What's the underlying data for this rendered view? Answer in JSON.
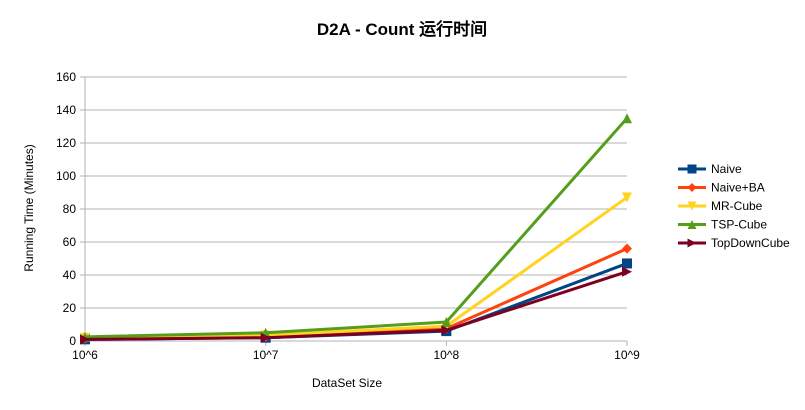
{
  "chart_data": {
    "type": "line",
    "title": "D2A - Count  运行时间",
    "xlabel": "DataSet Size",
    "ylabel": "Running Time (Minutes)",
    "categories": [
      "10^6",
      "10^7",
      "10^8",
      "10^9"
    ],
    "ylim": [
      0,
      160
    ],
    "yticks": [
      "0",
      "20",
      "40",
      "60",
      "80",
      "100",
      "120",
      "140",
      "160"
    ],
    "grid": true,
    "legend_position": "right",
    "series": [
      {
        "name": "Naive",
        "color": "#004586",
        "marker": "square",
        "values": [
          1,
          2,
          6,
          47
        ]
      },
      {
        "name": "Naive+BA",
        "color": "#ff420e",
        "marker": "diamond",
        "values": [
          1.5,
          2.5,
          7.5,
          56
        ]
      },
      {
        "name": "MR-Cube",
        "color": "#ffd320",
        "marker": "triangle-down",
        "values": [
          2,
          3.5,
          9,
          87
        ]
      },
      {
        "name": "TSP-Cube",
        "color": "#579d1c",
        "marker": "triangle-up",
        "values": [
          2.5,
          5,
          11.5,
          135
        ]
      },
      {
        "name": "TopDownCube",
        "color": "#7e0021",
        "marker": "triangle-right",
        "values": [
          1,
          2,
          6.5,
          42
        ]
      }
    ]
  }
}
